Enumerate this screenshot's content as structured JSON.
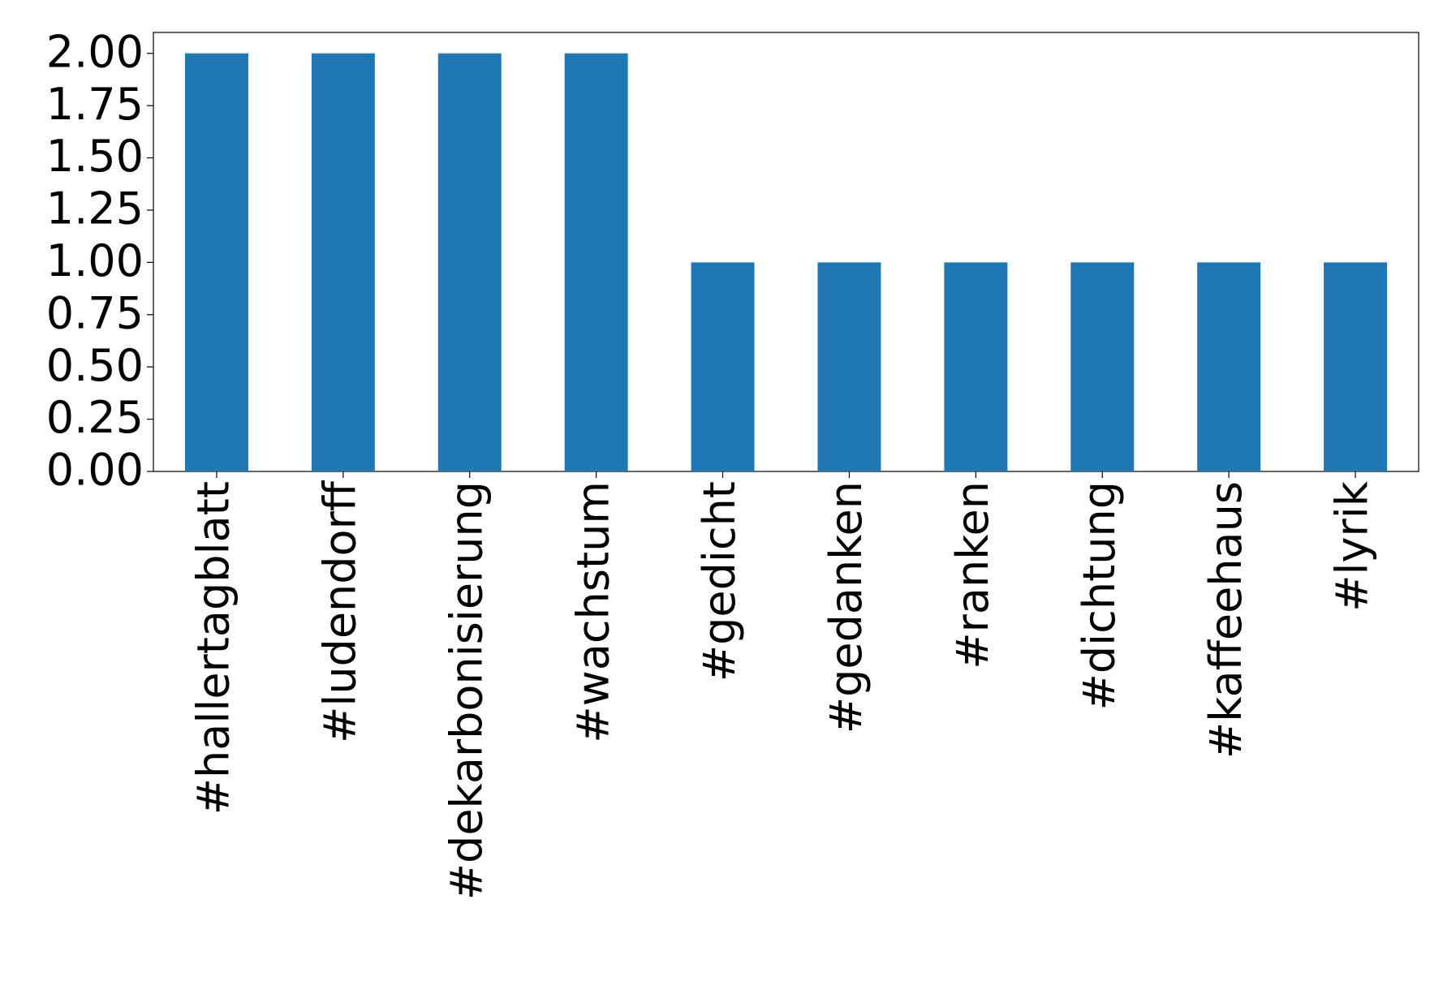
{
  "chart_data": {
    "type": "bar",
    "categories": [
      "#hallertagblatt",
      "#ludendorff",
      "#dekarbonisierung",
      "#wachstum",
      "#gedicht",
      "#gedanken",
      "#ranken",
      "#dichtung",
      "#kaffeehaus",
      "#lyrik"
    ],
    "values": [
      2,
      2,
      2,
      2,
      1,
      1,
      1,
      1,
      1,
      1
    ],
    "color": "#1f77b4",
    "ylim": [
      0,
      2.1
    ],
    "yticks": [
      {
        "value": 0,
        "label": "0.00"
      },
      {
        "value": 0.25,
        "label": "0.25"
      },
      {
        "value": 0.5,
        "label": "0.50"
      },
      {
        "value": 0.75,
        "label": "0.75"
      },
      {
        "value": 1,
        "label": "1.00"
      },
      {
        "value": 1.25,
        "label": "1.25"
      },
      {
        "value": 1.5,
        "label": "1.50"
      },
      {
        "value": 1.75,
        "label": "1.75"
      },
      {
        "value": 2,
        "label": "2.00"
      }
    ],
    "grid": false
  }
}
